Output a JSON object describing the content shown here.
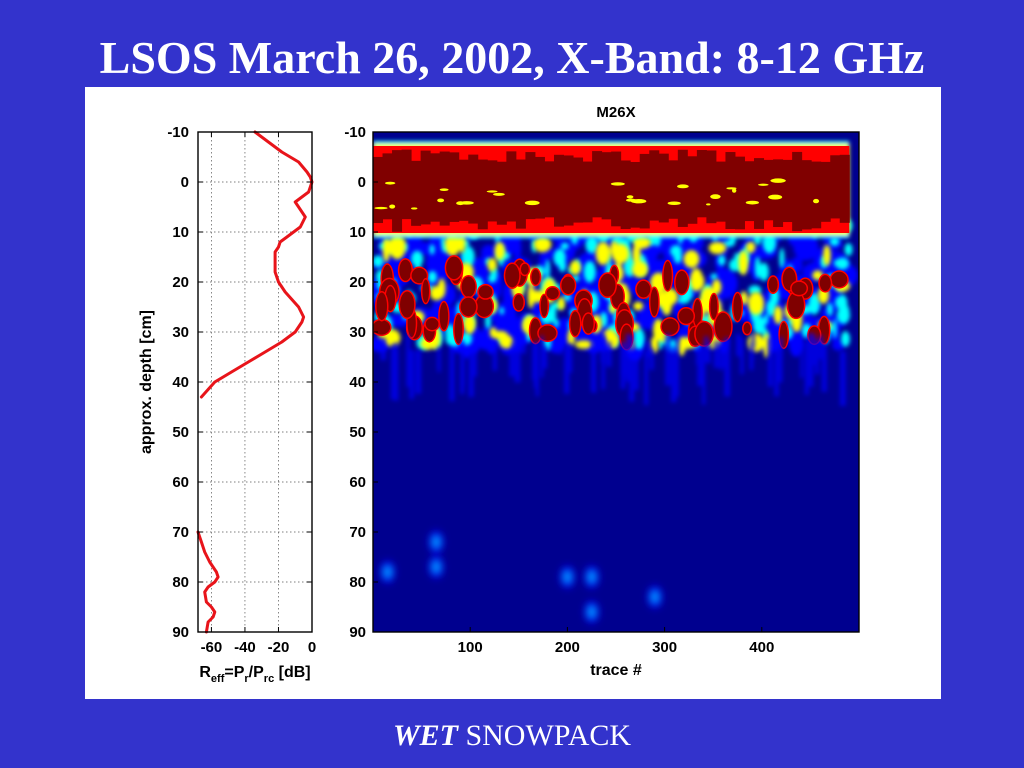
{
  "slide": {
    "title": "LSOS March 26, 2002, X-Band: 8-12 GHz",
    "caption_emphasis": "WET",
    "caption_rest": " SNOWPACK"
  },
  "chart_data": [
    {
      "type": "line",
      "orientation": "vertical-profile",
      "xlabel_parts": [
        "R",
        "eff",
        "=P",
        "r",
        "/P",
        "rc",
        " [dB]"
      ],
      "ylabel": "approx. depth [cm]",
      "xlim": [
        -68,
        0
      ],
      "ylim": [
        -10,
        90
      ],
      "x_ticks": [
        "-60",
        "-40",
        "-20",
        "0"
      ],
      "x_tick_values": [
        -60,
        -40,
        -20,
        0
      ],
      "y_ticks": [
        "-10",
        "0",
        "10",
        "20",
        "30",
        "40",
        "50",
        "60",
        "70",
        "80",
        "90"
      ],
      "y_tick_values": [
        -10,
        0,
        10,
        20,
        30,
        40,
        50,
        60,
        70,
        80,
        90
      ],
      "grid": true,
      "line_color": "#e8141a",
      "segments": [
        {
          "x": [
            -34,
            -26,
            -18,
            -8,
            -3,
            -1,
            0,
            -2,
            -6,
            -10,
            -8,
            -4,
            -7,
            -15,
            -19,
            -20,
            -22,
            -22,
            -22,
            -20,
            -16,
            -8,
            -5,
            -6,
            -10,
            -18,
            -28,
            -38,
            -48,
            -58,
            -66
          ],
          "y": [
            -10,
            -8,
            -6,
            -4,
            -2,
            -1,
            0,
            2,
            3,
            4,
            5,
            7,
            9,
            11,
            12,
            13,
            14,
            16,
            18,
            20,
            22,
            25,
            27,
            28,
            30,
            32,
            34,
            36,
            38,
            40,
            43
          ]
        },
        {
          "x": [
            -68,
            -66,
            -64,
            -61,
            -57,
            -56,
            -58,
            -62,
            -64,
            -63,
            -60,
            -58,
            -59,
            -62,
            -63
          ],
          "y": [
            70,
            72,
            74,
            76,
            78,
            79,
            80,
            81,
            82,
            84,
            85,
            86,
            87,
            88,
            90
          ]
        }
      ]
    },
    {
      "type": "heatmap",
      "title": "M26X",
      "xlabel": "trace #",
      "ylabel": "",
      "xlim": [
        0,
        500
      ],
      "ylim": [
        -10,
        90
      ],
      "x_ticks": [
        "100",
        "200",
        "300",
        "400"
      ],
      "x_tick_values": [
        100,
        200,
        300,
        400
      ],
      "y_ticks": [
        "-10",
        "0",
        "10",
        "20",
        "30",
        "40",
        "50",
        "60",
        "70",
        "80",
        "90"
      ],
      "y_tick_values": [
        -10,
        0,
        10,
        20,
        30,
        40,
        50,
        60,
        70,
        80,
        90
      ],
      "colormap": [
        "#00008f",
        "#0000ff",
        "#00ffff",
        "#ffff00",
        "#ff0000",
        "#800000"
      ],
      "saturated_band": {
        "depth_top": -7,
        "depth_bottom": 10,
        "trace_start": 0,
        "trace_end": 490
      },
      "speckle_zone": {
        "depth_top": 8,
        "depth_bottom": 33,
        "trace_start": 5,
        "trace_end": 490
      },
      "deep_reflections": [
        {
          "trace": 65,
          "depth": 72
        },
        {
          "trace": 65,
          "depth": 77
        },
        {
          "trace": 200,
          "depth": 79
        },
        {
          "trace": 225,
          "depth": 79
        },
        {
          "trace": 225,
          "depth": 86
        },
        {
          "trace": 15,
          "depth": 78
        },
        {
          "trace": 290,
          "depth": 83
        }
      ]
    }
  ]
}
